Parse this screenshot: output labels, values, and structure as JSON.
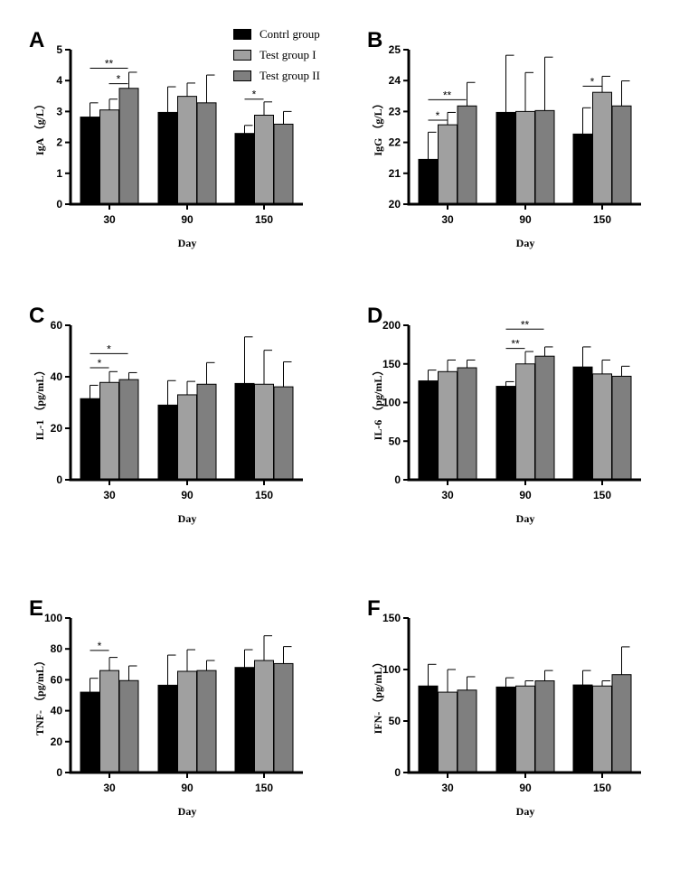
{
  "legend": [
    {
      "label": "Contrl group",
      "color": "#000000"
    },
    {
      "label": "Test group I",
      "color": "#a0a0a0"
    },
    {
      "label": "Test group II",
      "color": "#7f7f7f"
    }
  ],
  "chart_data": [
    {
      "type": "bar",
      "panel": "A",
      "xlabel": "Day",
      "ylabel": "IgA （g/L）",
      "categories": [
        "30",
        "90",
        "150"
      ],
      "ylim": [
        0,
        5
      ],
      "yticks": [
        0,
        1,
        2,
        3,
        4,
        5
      ],
      "series": [
        {
          "name": "Contrl group",
          "values": [
            2.82,
            2.97,
            2.29
          ],
          "err_top": [
            3.28,
            3.8,
            2.55
          ]
        },
        {
          "name": "Test group I",
          "values": [
            3.05,
            3.49,
            2.88
          ],
          "err_top": [
            3.4,
            3.92,
            3.31
          ]
        },
        {
          "name": "Test group II",
          "values": [
            3.75,
            3.28,
            2.59
          ],
          "err_top": [
            4.27,
            4.18,
            3.0
          ]
        }
      ],
      "significance": [
        {
          "category": 0,
          "from": 0,
          "to": 2,
          "y": 4.4,
          "label": "**"
        },
        {
          "category": 0,
          "from": 1,
          "to": 2,
          "y": 3.9,
          "label": "*"
        },
        {
          "category": 2,
          "from": 0,
          "to": 1,
          "y": 3.4,
          "label": "*"
        }
      ]
    },
    {
      "type": "bar",
      "panel": "B",
      "xlabel": "Day",
      "ylabel": "IgG （g/L）",
      "categories": [
        "30",
        "90",
        "150"
      ],
      "ylim": [
        20,
        25
      ],
      "yticks": [
        20,
        21,
        22,
        23,
        24,
        25
      ],
      "series": [
        {
          "name": "Contrl group",
          "values": [
            21.45,
            22.97,
            22.27
          ],
          "err_top": [
            22.33,
            24.82,
            23.12
          ]
        },
        {
          "name": "Test group I",
          "values": [
            22.57,
            23.0,
            23.62
          ],
          "err_top": [
            22.97,
            24.26,
            24.14
          ]
        },
        {
          "name": "Test group II",
          "values": [
            23.18,
            23.03,
            23.18
          ],
          "err_top": [
            23.94,
            24.76,
            23.99
          ]
        }
      ],
      "significance": [
        {
          "category": 0,
          "from": 0,
          "to": 1,
          "y": 22.72,
          "label": "*"
        },
        {
          "category": 0,
          "from": 0,
          "to": 2,
          "y": 23.38,
          "label": "**"
        },
        {
          "category": 2,
          "from": 0,
          "to": 1,
          "y": 23.82,
          "label": "*"
        }
      ]
    },
    {
      "type": "bar",
      "panel": "C",
      "xlabel": "Day",
      "ylabel": "IL-1 （pg/mL）",
      "categories": [
        "30",
        "90",
        "150"
      ],
      "ylim": [
        0,
        60
      ],
      "yticks": [
        0,
        20,
        40,
        60
      ],
      "series": [
        {
          "name": "Contrl group",
          "values": [
            31.5,
            29,
            37.4
          ],
          "err_top": [
            36.7,
            38.5,
            55.5
          ]
        },
        {
          "name": "Test group I",
          "values": [
            37.8,
            33,
            37.1
          ],
          "err_top": [
            42,
            38.2,
            50.3
          ]
        },
        {
          "name": "Test group II",
          "values": [
            38.9,
            37.1,
            36.1
          ],
          "err_top": [
            41.6,
            45.5,
            45.8
          ]
        }
      ],
      "significance": [
        {
          "category": 0,
          "from": 0,
          "to": 1,
          "y": 43.5,
          "label": "*"
        },
        {
          "category": 0,
          "from": 0,
          "to": 2,
          "y": 49,
          "label": "*"
        }
      ]
    },
    {
      "type": "bar",
      "panel": "D",
      "xlabel": "Day",
      "ylabel": "IL-6 （pg/mL）",
      "categories": [
        "30",
        "90",
        "150"
      ],
      "ylim": [
        0,
        200
      ],
      "yticks": [
        0,
        50,
        100,
        150,
        200
      ],
      "series": [
        {
          "name": "Contrl group",
          "values": [
            128,
            121,
            146
          ],
          "err_top": [
            142,
            127,
            172
          ]
        },
        {
          "name": "Test group I",
          "values": [
            140,
            150,
            137
          ],
          "err_top": [
            155,
            166,
            155
          ]
        },
        {
          "name": "Test group II",
          "values": [
            145,
            160,
            134
          ],
          "err_top": [
            155,
            172,
            147
          ]
        }
      ],
      "significance": [
        {
          "category": 1,
          "from": 0,
          "to": 1,
          "y": 170,
          "label": "**"
        },
        {
          "category": 1,
          "from": 0,
          "to": 2,
          "y": 195,
          "label": "**"
        }
      ]
    },
    {
      "type": "bar",
      "panel": "E",
      "xlabel": "Day",
      "ylabel": "TNF- （pg/mL）",
      "categories": [
        "30",
        "90",
        "150"
      ],
      "ylim": [
        0,
        100
      ],
      "yticks": [
        0,
        20,
        40,
        60,
        80,
        100
      ],
      "series": [
        {
          "name": "Contrl group",
          "values": [
            52,
            56.5,
            68
          ],
          "err_top": [
            61,
            76,
            79.5
          ]
        },
        {
          "name": "Test group I",
          "values": [
            66,
            65.5,
            72.5
          ],
          "err_top": [
            74.5,
            79.5,
            88.5
          ]
        },
        {
          "name": "Test group II",
          "values": [
            59.5,
            66,
            70.5
          ],
          "err_top": [
            69,
            72.5,
            81.5
          ]
        }
      ],
      "significance": [
        {
          "category": 0,
          "from": 0,
          "to": 1,
          "y": 79,
          "label": "*"
        }
      ]
    },
    {
      "type": "bar",
      "panel": "F",
      "xlabel": "Day",
      "ylabel": "IFN- （pg/mL）",
      "categories": [
        "30",
        "90",
        "150"
      ],
      "ylim": [
        0,
        150
      ],
      "yticks": [
        0,
        50,
        100,
        150
      ],
      "series": [
        {
          "name": "Contrl group",
          "values": [
            84,
            83,
            85
          ],
          "err_top": [
            105,
            92,
            99
          ]
        },
        {
          "name": "Test group I",
          "values": [
            78,
            84,
            84
          ],
          "err_top": [
            100,
            89,
            89
          ]
        },
        {
          "name": "Test group II",
          "values": [
            80,
            89,
            95
          ],
          "err_top": [
            93,
            99,
            122
          ]
        }
      ],
      "significance": []
    }
  ]
}
